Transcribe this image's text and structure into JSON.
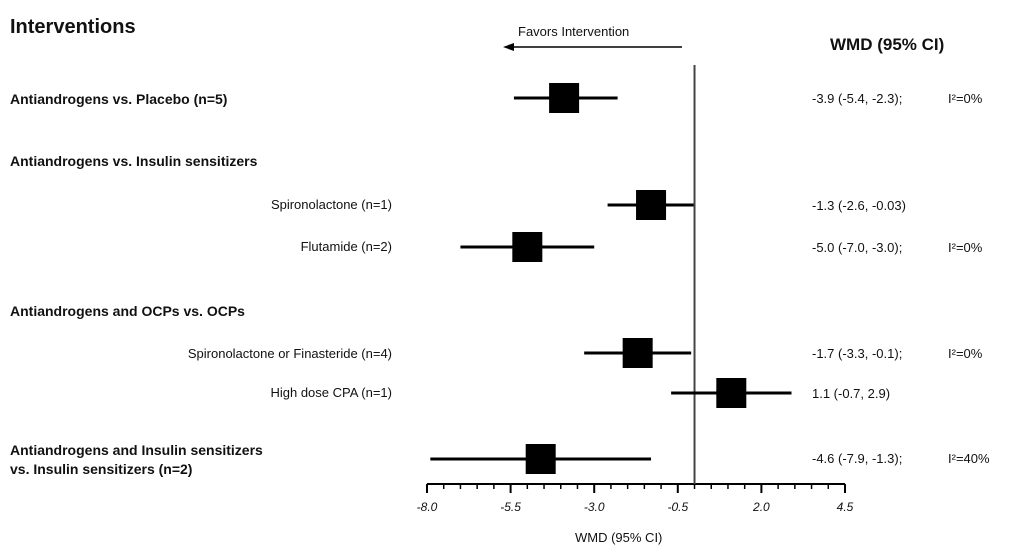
{
  "title": "Interventions",
  "estimate_header": "WMD (95% CI)",
  "favors_label": "Favors Intervention",
  "groups": [
    {
      "label": "Antiandrogens vs. Placebo (n=5)"
    },
    {
      "label": "Antiandrogens vs. Insulin sensitizers"
    },
    {
      "label": "Antiandrogens and OCPs vs. OCPs"
    },
    {
      "label": "Antiandrogens and Insulin sensitizers",
      "label2": "vs. Insulin sensitizers (n=2)"
    }
  ],
  "rows": [
    {
      "label": "Spironolactone (n=1)"
    },
    {
      "label": "Flutamide (n=2)"
    },
    {
      "label": "Spironolactone or Finasteride (n=4)"
    },
    {
      "label": "High dose CPA (n=1)"
    }
  ],
  "estimates": [
    {
      "text": "-3.9 (-5.4, -2.3);",
      "i2": "I²=0%"
    },
    {
      "text": "-1.3 (-2.6, -0.03)",
      "i2": ""
    },
    {
      "text": "-5.0 (-7.0, -3.0);",
      "i2": "I²=0%"
    },
    {
      "text": "-1.7 (-3.3, -0.1);",
      "i2": "I²=0%"
    },
    {
      "text": "1.1 (-0.7, 2.9)",
      "i2": ""
    },
    {
      "text": "-4.6 (-7.9, -1.3);",
      "i2": "I²=40%"
    }
  ],
  "chart_data": {
    "type": "scatter",
    "subtype": "forest-plot",
    "title": "Interventions",
    "xlabel": "WMD (95% CI)",
    "ylabel": "",
    "xlim": [
      -8.0,
      4.5
    ],
    "xticks": [
      -8.0,
      -5.5,
      -3.0,
      -0.5,
      2.0,
      4.5
    ],
    "xtick_labels": [
      "-8.0",
      "-5.5",
      "-3.0",
      "-0.5",
      "2.0",
      "4.5"
    ],
    "reference_line": 0,
    "annotation": "Favors Intervention",
    "points": [
      {
        "label": "Antiandrogens vs. Placebo (n=5)",
        "wmd": -3.9,
        "ci_low": -5.4,
        "ci_high": -2.3,
        "i2": "0%"
      },
      {
        "label": "Spironolactone (n=1)",
        "wmd": -1.3,
        "ci_low": -2.6,
        "ci_high": -0.03
      },
      {
        "label": "Flutamide (n=2)",
        "wmd": -5.0,
        "ci_low": -7.0,
        "ci_high": -3.0,
        "i2": "0%"
      },
      {
        "label": "Spironolactone or Finasteride (n=4)",
        "wmd": -1.7,
        "ci_low": -3.3,
        "ci_high": -0.1,
        "i2": "0%"
      },
      {
        "label": "High dose CPA (n=1)",
        "wmd": 1.1,
        "ci_low": -0.7,
        "ci_high": 2.9
      },
      {
        "label": "Antiandrogens and Insulin sensitizers vs. Insulin sensitizers (n=2)",
        "wmd": -4.6,
        "ci_low": -7.9,
        "ci_high": -1.3,
        "i2": "40%"
      }
    ]
  }
}
